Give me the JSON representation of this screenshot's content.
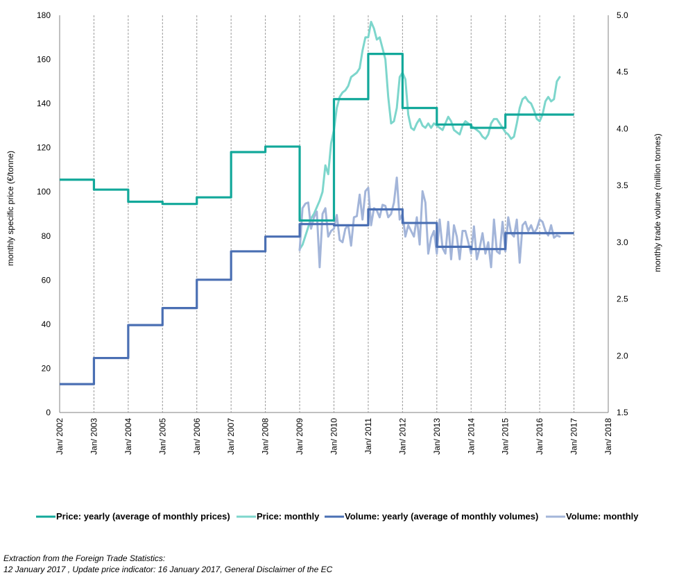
{
  "chart_data": {
    "type": "line",
    "title": "",
    "ylabel": "monthly specific price (€/tonne)",
    "y2label": "monthly trade volume  (million tonnes)",
    "ylim": [
      0,
      180
    ],
    "yticks": [
      0,
      20,
      40,
      60,
      80,
      100,
      120,
      140,
      160,
      180
    ],
    "y2lim": [
      1.5,
      5.0
    ],
    "y2ticks": [
      "1.5",
      "2.0",
      "2.5",
      "3.0",
      "3.5",
      "4.0",
      "4.5",
      "5.0"
    ],
    "xlim": [
      2002,
      2018
    ],
    "xticks": [
      "Jan/ 2002",
      "Jan/ 2003",
      "Jan/ 2004",
      "Jan/ 2005",
      "Jan/ 2006",
      "Jan/ 2007",
      "Jan/ 2008",
      "Jan/ 2009",
      "Jan/ 2010",
      "Jan/ 2011",
      "Jan/ 2012",
      "Jan/ 2013",
      "Jan/ 2014",
      "Jan/ 2015",
      "Jan/ 2016",
      "Jan/ 2017",
      "Jan/ 2018"
    ],
    "grid": "vertical dashed",
    "legend_position": "bottom",
    "series": [
      {
        "name": "Price: yearly (average of monthly prices)",
        "axis": "left",
        "style": "step",
        "color": "#12A89A",
        "x": [
          2002,
          2003,
          2004,
          2005,
          2006,
          2007,
          2008,
          2009,
          2010,
          2011,
          2012,
          2013,
          2014,
          2015,
          2016
        ],
        "values": [
          105.5,
          101,
          95.5,
          94.5,
          97.5,
          118,
          120.5,
          87,
          142,
          162.5,
          138,
          130.5,
          129,
          135,
          135
        ]
      },
      {
        "name": "Price: monthly",
        "axis": "left",
        "style": "line",
        "color": "#7DD6CC",
        "x": [
          2009.0,
          2009.083,
          2009.167,
          2009.25,
          2009.333,
          2009.417,
          2009.5,
          2009.583,
          2009.667,
          2009.75,
          2009.833,
          2009.917,
          2010.0,
          2010.083,
          2010.167,
          2010.25,
          2010.333,
          2010.417,
          2010.5,
          2010.583,
          2010.667,
          2010.75,
          2010.833,
          2010.917,
          2011.0,
          2011.083,
          2011.167,
          2011.25,
          2011.333,
          2011.417,
          2011.5,
          2011.583,
          2011.667,
          2011.75,
          2011.833,
          2011.917,
          2012.0,
          2012.083,
          2012.167,
          2012.25,
          2012.333,
          2012.417,
          2012.5,
          2012.583,
          2012.667,
          2012.75,
          2012.833,
          2012.917,
          2013.0,
          2013.083,
          2013.167,
          2013.25,
          2013.333,
          2013.417,
          2013.5,
          2013.583,
          2013.667,
          2013.75,
          2013.833,
          2013.917,
          2014.0,
          2014.083,
          2014.167,
          2014.25,
          2014.333,
          2014.417,
          2014.5,
          2014.583,
          2014.667,
          2014.75,
          2014.833,
          2014.917,
          2015.0,
          2015.083,
          2015.167,
          2015.25,
          2015.333,
          2015.417,
          2015.5,
          2015.583,
          2015.667,
          2015.75,
          2015.833,
          2015.917,
          2016.0,
          2016.083,
          2016.167,
          2016.25,
          2016.333,
          2016.417,
          2016.5,
          2016.583
        ],
        "values": [
          74,
          76,
          80,
          84,
          88,
          90,
          93,
          96,
          100,
          112,
          108,
          122,
          128,
          138,
          143,
          145,
          146,
          148,
          152,
          153,
          154,
          156,
          164,
          170,
          170,
          177,
          174,
          169,
          170,
          165,
          160,
          143,
          131,
          132,
          138,
          152,
          154,
          151,
          135,
          129,
          128,
          131,
          133,
          130,
          129,
          131,
          129,
          131,
          130,
          129,
          128,
          131,
          134,
          132,
          128,
          127,
          126,
          130,
          132,
          131,
          130,
          129,
          128,
          127,
          125,
          124,
          126,
          131,
          133,
          133,
          131,
          129,
          127,
          126,
          124,
          125,
          131,
          138,
          142,
          143,
          141,
          140,
          137,
          133,
          132,
          135,
          141,
          143,
          141,
          142,
          150,
          152
        ]
      },
      {
        "name": "Volume: yearly (average of monthly volumes)",
        "axis": "right",
        "style": "step",
        "color": "#4A6FB3",
        "x": [
          2002,
          2003,
          2004,
          2005,
          2006,
          2007,
          2008,
          2009,
          2010,
          2011,
          2012,
          2013,
          2014,
          2015,
          2016
        ],
        "values": [
          1.75,
          1.98,
          2.27,
          2.42,
          2.67,
          2.92,
          3.05,
          3.16,
          3.15,
          3.29,
          3.17,
          2.96,
          2.94,
          3.08,
          3.08
        ]
      },
      {
        "name": "Volume: monthly",
        "axis": "right",
        "style": "line",
        "color": "#A3B5D9",
        "x": [
          2009.0,
          2009.083,
          2009.167,
          2009.25,
          2009.333,
          2009.417,
          2009.5,
          2009.583,
          2009.667,
          2009.75,
          2009.833,
          2009.917,
          2010.0,
          2010.083,
          2010.167,
          2010.25,
          2010.333,
          2010.417,
          2010.5,
          2010.583,
          2010.667,
          2010.75,
          2010.833,
          2010.917,
          2011.0,
          2011.083,
          2011.167,
          2011.25,
          2011.333,
          2011.417,
          2011.5,
          2011.583,
          2011.667,
          2011.75,
          2011.833,
          2011.917,
          2012.0,
          2012.083,
          2012.167,
          2012.25,
          2012.333,
          2012.417,
          2012.5,
          2012.583,
          2012.667,
          2012.75,
          2012.833,
          2012.917,
          2013.0,
          2013.083,
          2013.167,
          2013.25,
          2013.333,
          2013.417,
          2013.5,
          2013.583,
          2013.667,
          2013.75,
          2013.833,
          2013.917,
          2014.0,
          2014.083,
          2014.167,
          2014.25,
          2014.333,
          2014.417,
          2014.5,
          2014.583,
          2014.667,
          2014.75,
          2014.833,
          2014.917,
          2015.0,
          2015.083,
          2015.167,
          2015.25,
          2015.333,
          2015.417,
          2015.5,
          2015.583,
          2015.667,
          2015.75,
          2015.833,
          2015.917,
          2016.0,
          2016.083,
          2016.167,
          2016.25,
          2016.333,
          2016.417,
          2016.5,
          2016.583
        ],
        "values": [
          2.93,
          3.3,
          3.34,
          3.35,
          3.12,
          3.22,
          3.27,
          2.78,
          3.25,
          3.3,
          3.05,
          3.1,
          3.12,
          3.24,
          3.02,
          3.0,
          3.12,
          3.15,
          2.97,
          3.22,
          3.23,
          3.42,
          3.2,
          3.45,
          3.48,
          3.15,
          3.3,
          3.28,
          3.22,
          3.33,
          3.32,
          3.22,
          3.25,
          3.35,
          3.57,
          3.2,
          3.25,
          3.05,
          3.15,
          3.1,
          3.05,
          3.22,
          2.98,
          3.45,
          3.35,
          2.9,
          3.04,
          3.1,
          2.9,
          3.2,
          2.95,
          2.9,
          3.18,
          2.85,
          3.15,
          3.05,
          2.85,
          3.1,
          3.1,
          3.0,
          2.9,
          3.14,
          2.85,
          2.95,
          3.08,
          2.9,
          3.0,
          2.78,
          3.2,
          2.92,
          2.9,
          3.18,
          2.92,
          3.22,
          3.08,
          3.05,
          3.2,
          2.82,
          3.15,
          3.18,
          3.1,
          3.15,
          3.08,
          3.12,
          3.2,
          3.18,
          3.1,
          3.06,
          3.15,
          3.04,
          3.06,
          3.05
        ]
      }
    ]
  },
  "footer": {
    "line1": "Extraction from the Foreign Trade Statistics:",
    "line2": "12 January 2017 , Update price indicator:  16 January 2017,  General Disclaimer of the EC"
  }
}
